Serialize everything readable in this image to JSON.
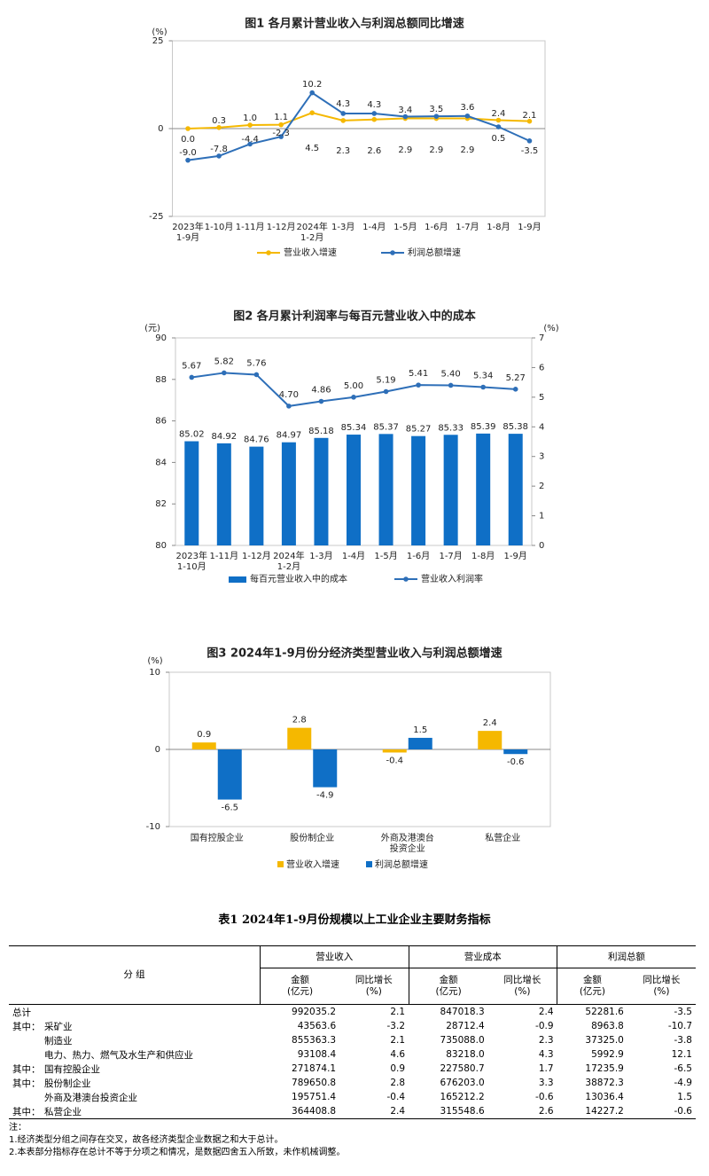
{
  "chart_data": [
    {
      "type": "line",
      "title": "图1  各月累计营业收入与利润总额同比增速",
      "y_label": "(%)",
      "categories": [
        "2023年\n1-9月",
        "1-10月",
        "1-11月",
        "1-12月",
        "2024年\n1-2月",
        "1-3月",
        "1-4月",
        "1-5月",
        "1-6月",
        "1-7月",
        "1-8月",
        "1-9月"
      ],
      "series": [
        {
          "name": "营业收入增速",
          "color": "#f5b800",
          "values": [
            0.0,
            0.3,
            1.0,
            1.1,
            4.5,
            2.3,
            2.6,
            2.9,
            2.9,
            2.9,
            2.4,
            2.1
          ],
          "value_labels": [
            "0.0",
            "0.3",
            "1.0",
            "1.1",
            "4.5",
            "2.3",
            "2.6",
            "2.9",
            "2.9",
            "2.9",
            "2.4",
            "2.1"
          ]
        },
        {
          "name": "利润总额增速",
          "color": "#2e6fb8",
          "values": [
            -9.0,
            -7.8,
            -4.4,
            -2.3,
            10.2,
            4.3,
            4.3,
            3.4,
            3.5,
            3.6,
            0.5,
            -3.5
          ],
          "value_labels": [
            "-9.0",
            "-7.8",
            "-4.4",
            "-2.3",
            "10.2",
            "4.3",
            "4.3",
            "3.4",
            "3.5",
            "3.6",
            "0.5",
            "-3.5"
          ]
        }
      ],
      "ylim": [
        -25,
        25
      ],
      "yticks": [
        -25,
        0,
        25
      ]
    },
    {
      "type": "combo",
      "title": "图2  各月累计利润率与每百元营业收入中的成本",
      "y_label": "(元)",
      "y2_label": "(%)",
      "categories": [
        "2023年\n1-10月",
        "1-11月",
        "1-12月",
        "2024年\n1-2月",
        "1-3月",
        "1-4月",
        "1-5月",
        "1-6月",
        "1-7月",
        "1-8月",
        "1-9月"
      ],
      "series": [
        {
          "name": "每百元营业收入中的成本",
          "color": "#0f6fc6",
          "values": [
            85.02,
            84.92,
            84.76,
            84.97,
            85.18,
            85.34,
            85.37,
            85.27,
            85.33,
            85.39,
            85.38
          ]
        },
        {
          "name": "营业收入利润率",
          "color": "#2e6fb8",
          "axis": "y2",
          "values": [
            5.67,
            5.82,
            5.76,
            4.7,
            4.86,
            5.0,
            5.19,
            5.41,
            5.4,
            5.34,
            5.27
          ],
          "value_labels": [
            "5.67",
            "5.82",
            "5.76",
            "4.70",
            "4.86",
            "5.00",
            "5.19",
            "5.41",
            "5.40",
            "5.34",
            "5.27"
          ]
        }
      ],
      "ylim": [
        80,
        90
      ],
      "yticks": [
        80,
        82,
        84,
        86,
        88,
        90
      ],
      "y2lim": [
        0,
        7
      ],
      "y2ticks": [
        0,
        1,
        2,
        3,
        4,
        5,
        6,
        7
      ]
    },
    {
      "type": "bar",
      "title": "图3  2024年1-9月份分经济类型营业收入与利润总额增速",
      "y_label": "(%)",
      "categories": [
        "国有控股企业",
        "股份制企业",
        "外商及港澳台\n投资企业",
        "私营企业"
      ],
      "series": [
        {
          "name": "营业收入增速",
          "color": "#f5b800",
          "values": [
            0.9,
            2.8,
            -0.4,
            2.4
          ]
        },
        {
          "name": "利润总额增速",
          "color": "#0f6fc6",
          "values": [
            -6.5,
            -4.9,
            1.5,
            -0.6
          ]
        }
      ],
      "ylim": [
        -10,
        10
      ],
      "yticks": [
        -10,
        0,
        10
      ]
    }
  ],
  "table": {
    "title": "表1    2024年1-9月份规模以上工业企业主要财务指标",
    "group_header": "分    组",
    "groups": [
      "营业收入",
      "营业成本",
      "利润总额"
    ],
    "subheaders": [
      "金额\n(亿元)",
      "同比增长\n(%)"
    ],
    "rows": [
      [
        null,
        "总计",
        "992035.2",
        "2.1",
        "847018.3",
        "2.4",
        "52281.6",
        "-3.5"
      ],
      [
        "其中：",
        "采矿业",
        "43563.6",
        "-3.2",
        "28712.4",
        "-0.9",
        "8963.8",
        "-10.7"
      ],
      [
        null,
        "制造业",
        "855363.3",
        "2.1",
        "735088.0",
        "2.3",
        "37325.0",
        "-3.8"
      ],
      [
        null,
        "电力、热力、燃气及水生产和供应业",
        "93108.4",
        "4.6",
        "83218.0",
        "4.3",
        "5992.9",
        "12.1"
      ],
      [
        "其中：",
        "国有控股企业",
        "271874.1",
        "0.9",
        "227580.7",
        "1.7",
        "17235.9",
        "-6.5"
      ],
      [
        "其中：",
        "股份制企业",
        "789650.8",
        "2.8",
        "676203.0",
        "3.3",
        "38872.3",
        "-4.9"
      ],
      [
        null,
        "外商及港澳台投资企业",
        "195751.4",
        "-0.4",
        "165212.2",
        "-0.6",
        "13036.4",
        "1.5"
      ],
      [
        "其中：",
        "私营企业",
        "364408.8",
        "2.4",
        "315548.6",
        "2.6",
        "14227.2",
        "-0.6"
      ]
    ],
    "notes": [
      "注：",
      "1.经济类型分组之间存在交叉，故各经济类型企业数据之和大于总计。",
      "2.本表部分指标存在总计不等于分项之和情况，是数据四舍五入所致，未作机械调整。"
    ]
  }
}
